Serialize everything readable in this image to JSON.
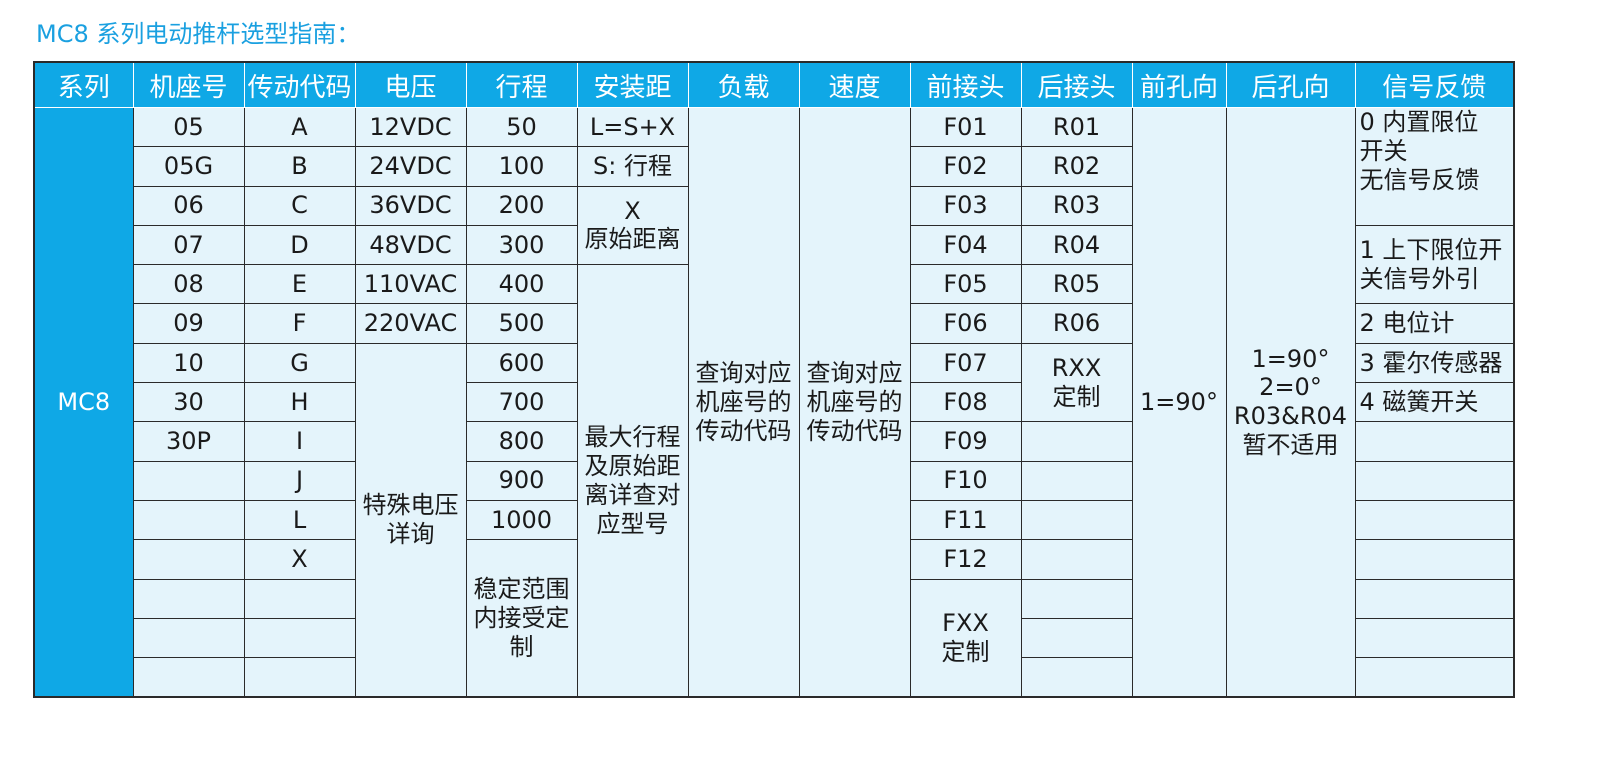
{
  "title": "MC8 系列电动推杆选型指南：",
  "colors": {
    "header_bg": "#0fa8e6",
    "cell_bg": "#e4f4fb",
    "title": "#1aa0e0"
  },
  "headers": [
    "系列",
    "机座号",
    "传动代码",
    "电压",
    "行程",
    "安装距",
    "负载",
    "速度",
    "前接头",
    "后接头",
    "前孔向",
    "后孔向",
    "信号反馈"
  ],
  "series": "MC8",
  "frames": [
    "05",
    "05G",
    "06",
    "07",
    "08",
    "09",
    "10",
    "30",
    "30P",
    "",
    "",
    "",
    "",
    "",
    ""
  ],
  "drive_codes": [
    "A",
    "B",
    "C",
    "D",
    "E",
    "F",
    "G",
    "H",
    "I",
    "J",
    "L",
    "X",
    "",
    "",
    ""
  ],
  "voltages": [
    "12VDC",
    "24VDC",
    "36VDC",
    "48VDC",
    "110VAC",
    "220VAC"
  ],
  "voltage_special": "特殊电压\n详询",
  "strokes": [
    "50",
    "100",
    "200",
    "300",
    "400",
    "500",
    "600",
    "700",
    "800",
    "900",
    "1000"
  ],
  "stroke_custom": "稳定范围\n内接受定\n制",
  "install": {
    "formula": "L=S+X",
    "s_note": "S: 行程",
    "x_note": "X\n原始距离",
    "max_note": "最大行程\n及原始距\n离详查对\n应型号"
  },
  "load_note": "查询对应\n机座号的\n传动代码",
  "speed_note": "查询对应\n机座号的\n传动代码",
  "front_joints": [
    "F01",
    "F02",
    "F03",
    "F04",
    "F05",
    "F06",
    "F07",
    "F08",
    "F09",
    "F10",
    "F11",
    "F12"
  ],
  "front_custom": "FXX\n定制",
  "rear_joints": [
    "R01",
    "R02",
    "R03",
    "R04",
    "R05",
    "R06"
  ],
  "rear_custom": "RXX\n定制",
  "front_hole": "1=90°",
  "rear_hole": "1=90°\n2=0°\nR03&R04\n暂不适用",
  "signals": {
    "s0": "0 内置限位\n开关\n无信号反馈",
    "s1": "1 上下限位开\n关信号外引",
    "s2": "2 电位计",
    "s3": "3 霍尔传感器",
    "s4": "4 磁簧开关"
  }
}
